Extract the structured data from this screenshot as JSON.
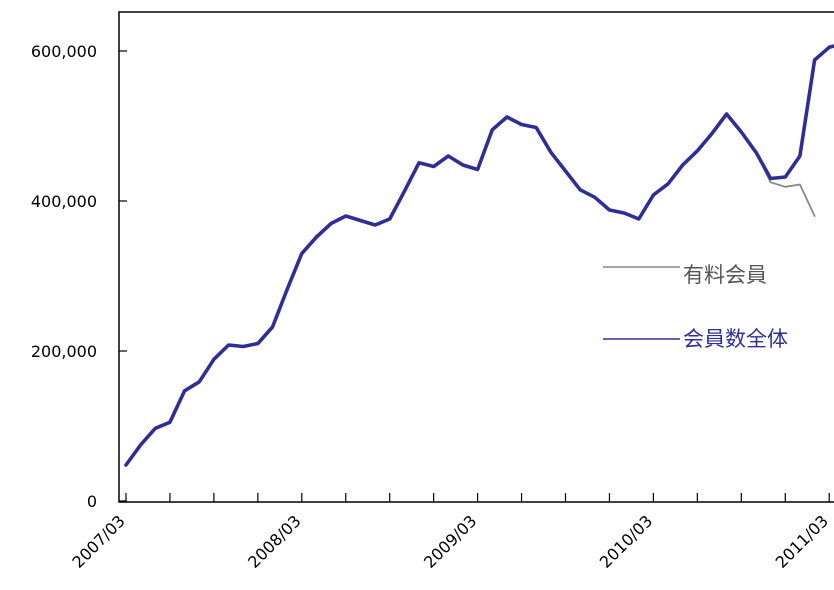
{
  "chart_data": {
    "type": "line",
    "title": "",
    "xlabel": "",
    "ylabel": "",
    "ylim": [
      0,
      650000
    ],
    "yticks": [
      0,
      200000,
      400000,
      600000
    ],
    "ytick_labels": [
      "0",
      "200,000",
      "400,000",
      "600,000"
    ],
    "xtick_labels": [
      "2007/03",
      "2008/03",
      "2009/03",
      "2010/03",
      "2011/03"
    ],
    "grid": false,
    "legend_position": "right",
    "x": [
      "2007/03",
      "2007/04",
      "2007/05",
      "2007/06",
      "2007/07",
      "2007/08",
      "2007/09",
      "2007/10",
      "2007/11",
      "2007/12",
      "2008/01",
      "2008/02",
      "2008/03",
      "2008/04",
      "2008/05",
      "2008/06",
      "2008/07",
      "2008/08",
      "2008/09",
      "2008/10",
      "2008/11",
      "2008/12",
      "2009/01",
      "2009/02",
      "2009/03",
      "2009/04",
      "2009/05",
      "2009/06",
      "2009/07",
      "2009/08",
      "2009/09",
      "2009/10",
      "2009/11",
      "2009/12",
      "2010/01",
      "2010/02",
      "2010/03",
      "2010/04",
      "2010/05",
      "2010/06",
      "2010/07",
      "2010/08",
      "2010/09",
      "2010/10",
      "2010/11",
      "2010/12",
      "2011/01",
      "2011/02",
      "2011/03",
      "2011/04"
    ],
    "series": [
      {
        "name": "有料会員",
        "color": "#888888",
        "values": [
          48000,
          75000,
          97000,
          105000,
          147000,
          159000,
          189000,
          208000,
          206000,
          210000,
          232000,
          282000,
          330000,
          352000,
          370000,
          380000,
          374000,
          368000,
          376000,
          413000,
          451000,
          446000,
          460000,
          448000,
          442000,
          495000,
          512000,
          502000,
          498000,
          465000,
          440000,
          415000,
          405000,
          388000,
          384000,
          376000,
          408000,
          423000,
          448000,
          467000,
          490000,
          516000,
          492000,
          465000,
          425000,
          419000,
          422000,
          380000,
          null,
          null
        ]
      },
      {
        "name": "会員数全体",
        "color": "#2e2e96",
        "values": [
          48000,
          75000,
          97000,
          105000,
          147000,
          159000,
          189000,
          208000,
          206000,
          210000,
          232000,
          282000,
          330000,
          352000,
          370000,
          380000,
          374000,
          368000,
          376000,
          413000,
          451000,
          446000,
          460000,
          448000,
          442000,
          495000,
          512000,
          502000,
          498000,
          465000,
          440000,
          415000,
          405000,
          388000,
          384000,
          376000,
          408000,
          423000,
          448000,
          467000,
          490000,
          516000,
          492000,
          465000,
          430000,
          432000,
          460000,
          588000,
          605000,
          610000
        ]
      }
    ]
  }
}
